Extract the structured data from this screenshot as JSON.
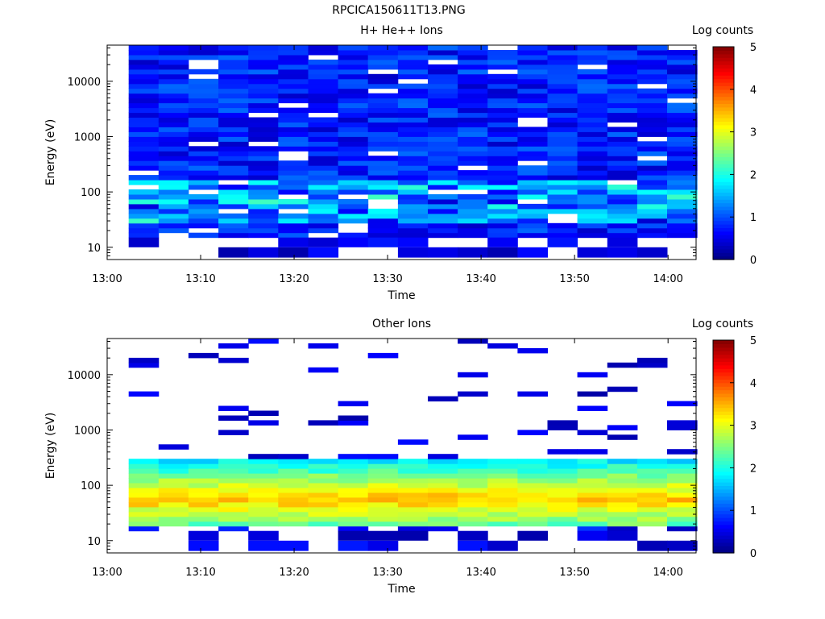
{
  "page_title": "RPCICA150611T13.PNG",
  "chart_data": [
    {
      "type": "heatmap",
      "title": "H+ He++ Ions",
      "xlabel": "Time",
      "ylabel": "Energy (eV)",
      "yscale": "log",
      "ylim": [
        6,
        45000
      ],
      "xlim": [
        "13:00",
        "14:03"
      ],
      "xticks": [
        "13:00",
        "13:10",
        "13:20",
        "13:30",
        "13:40",
        "13:50",
        "14:00"
      ],
      "yticks": [
        "10",
        "100",
        "1000",
        "10000"
      ],
      "colorbar": {
        "label": "Log counts",
        "min": 0,
        "max": 5,
        "ticks": [
          "0",
          "1",
          "2",
          "3",
          "4",
          "5"
        ]
      },
      "time_bins_start_minutes": [
        2.3,
        5.5,
        8.7,
        11.9,
        15.1,
        18.3,
        21.5,
        24.7,
        27.9,
        31.1,
        34.3,
        37.5,
        40.7,
        43.9,
        47.1,
        50.3,
        53.5,
        56.7,
        59.9
      ],
      "energy_range_eV": [
        6,
        45000
      ],
      "dominant_values": "mostly 0.3-1.2 log counts above 100 eV, peaks ~1.8-2.0 near 30-100 eV at 13:17, 13:20, 13:26"
    },
    {
      "type": "heatmap",
      "title": "Other Ions",
      "xlabel": "Time",
      "ylabel": "Energy (eV)",
      "yscale": "log",
      "ylim": [
        6,
        45000
      ],
      "xlim": [
        "13:00",
        "14:03"
      ],
      "xticks": [
        "13:00",
        "13:10",
        "13:20",
        "13:30",
        "13:40",
        "13:50",
        "14:00"
      ],
      "yticks": [
        "10",
        "100",
        "1000",
        "10000"
      ],
      "colorbar": {
        "label": "Log counts",
        "min": 0,
        "max": 5,
        "ticks": [
          "0",
          "1",
          "2",
          "3",
          "4",
          "5"
        ]
      },
      "time_bins_start_minutes": [
        2.3,
        5.5,
        8.7,
        11.9,
        15.1,
        18.3,
        21.5,
        24.7,
        27.9,
        31.1,
        34.3,
        37.5,
        40.7,
        43.9,
        47.1,
        50.3,
        53.5,
        56.7,
        59.9
      ],
      "dominant_values": "band 20-300 eV with 2.0-3.5 log counts, peaks ~3.7 near 50-80 eV at 13:17-13:20 and 13:26; sparse low-count lines above 1000 eV"
    }
  ]
}
